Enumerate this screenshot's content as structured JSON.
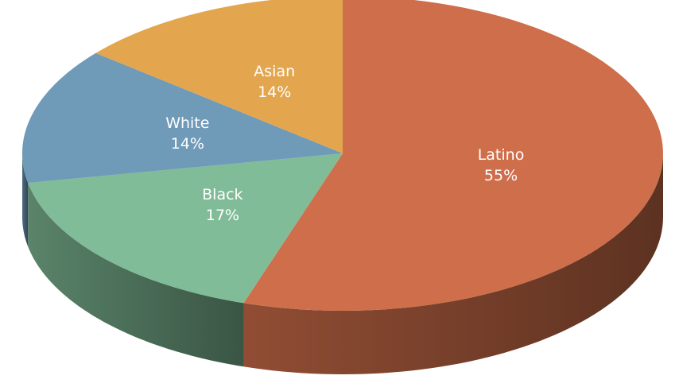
{
  "chart_data": {
    "type": "pie",
    "categories": [
      "Latino",
      "Black",
      "White",
      "Asian"
    ],
    "values": [
      55,
      17,
      14,
      14
    ],
    "value_labels": [
      "55%",
      "17%",
      "14%",
      "14%"
    ],
    "colors": [
      "#cf6e4a",
      "#80bc98",
      "#6f9ab8",
      "#e3a64f"
    ]
  }
}
